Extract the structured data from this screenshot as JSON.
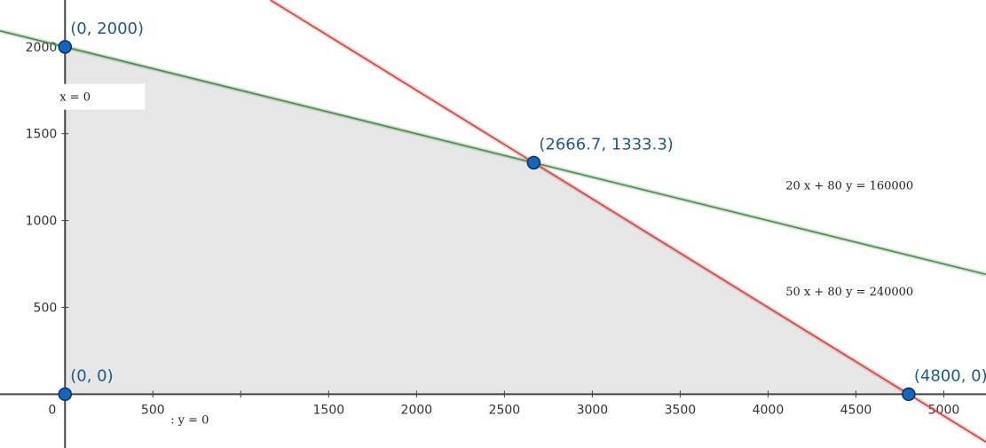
{
  "chart_data": {
    "type": "line",
    "title": "",
    "xlabel": "",
    "ylabel": "",
    "xlim": [
      -370,
      5240
    ],
    "ylim": [
      -310,
      2270
    ],
    "grid": false,
    "x_ticks": [
      {
        "value": 0,
        "label": "0"
      },
      {
        "value": 500,
        "label": "500"
      },
      {
        "value": 1000,
        "label": ""
      },
      {
        "value": 1500,
        "label": "1500"
      },
      {
        "value": 2000,
        "label": "2000"
      },
      {
        "value": 2500,
        "label": "2500"
      },
      {
        "value": 3000,
        "label": "3000"
      },
      {
        "value": 3500,
        "label": "3500"
      },
      {
        "value": 4000,
        "label": "4000"
      },
      {
        "value": 4500,
        "label": "4500"
      },
      {
        "value": 5000,
        "label": "5000"
      }
    ],
    "y_ticks": [
      {
        "value": 500,
        "label": "500"
      },
      {
        "value": 1000,
        "label": "1000"
      },
      {
        "value": 1500,
        "label": "1500"
      },
      {
        "value": 2000,
        "label": "2000"
      }
    ],
    "lines": [
      {
        "name": "20 x + 80 y  =  160000",
        "a": 20,
        "b": 80,
        "c": 160000,
        "color": "#4a8a4a"
      },
      {
        "name": "50 x + 80 y  =  240000",
        "a": 50,
        "b": 80,
        "c": 240000,
        "color": "#cc4444"
      }
    ],
    "axis_labels": {
      "x_axis": "x  =  0",
      "y_axis": ": y  =  0"
    },
    "feasible_region": [
      [
        0,
        0
      ],
      [
        0,
        2000
      ],
      [
        2666.7,
        1333.3
      ],
      [
        4800,
        0
      ]
    ],
    "region_color": "#e6e6e6",
    "points": [
      {
        "x": 0,
        "y": 2000,
        "label": "(0, 2000)"
      },
      {
        "x": 2666.7,
        "y": 1333.3,
        "label": "(2666.7, 1333.3)"
      },
      {
        "x": 0,
        "y": 0,
        "label": "(0, 0)"
      },
      {
        "x": 4800,
        "y": 0,
        "label": "(4800, 0)"
      }
    ],
    "point_color": "#1565c0"
  }
}
